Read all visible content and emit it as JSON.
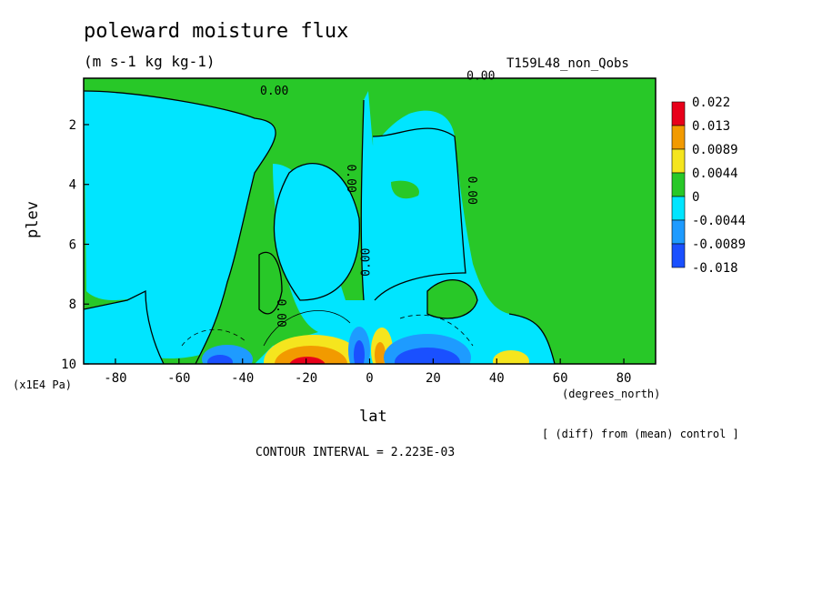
{
  "figure": {
    "title": "poleward moisture flux",
    "units": "(m s-1 kg kg-1)",
    "run_label": "T159L48_non_Qobs",
    "ylabel": "plev",
    "xlabel": "lat",
    "y_unit": "(x1E4 Pa)",
    "x_unit": "(degrees_north)",
    "diff_note": "[ (diff) from (mean) control ]",
    "contour_interval": "CONTOUR INTERVAL = 2.223E-03"
  },
  "chart_data": {
    "type": "heatmap",
    "title": "poleward moisture flux",
    "xlabel": "lat",
    "ylabel": "plev",
    "xlim": [
      -90,
      90
    ],
    "ylim": [
      10,
      0
    ],
    "x_ticks": [
      "-80",
      "-60",
      "-40",
      "-20",
      "0",
      "20",
      "40",
      "60",
      "80"
    ],
    "x_tick_values": [
      -80,
      -60,
      -40,
      -20,
      0,
      20,
      40,
      60,
      80
    ],
    "y_ticks": [
      "2",
      "4",
      "6",
      "8",
      "10"
    ],
    "y_tick_values": [
      2,
      4,
      6,
      8,
      10
    ],
    "contour_labels": [
      {
        "text": "0.00",
        "lat": -30,
        "plev": 1.0
      },
      {
        "text": "0.00",
        "lat": 35,
        "plev": 0.5
      },
      {
        "text": "0.00",
        "lat": -7,
        "plev": 3.8
      },
      {
        "text": "0.00",
        "lat": 31,
        "plev": 4.2
      },
      {
        "text": "0.00",
        "lat": 0,
        "plev": 6.6
      },
      {
        "text": "0.00",
        "lat": -29,
        "plev": 8.3
      }
    ],
    "legend": {
      "labels": [
        "0.022",
        "0.013",
        "0.0089",
        "0.0044",
        "0",
        "-0.0044",
        "-0.0089",
        "-0.018"
      ],
      "colors": [
        "#e8001a",
        "#f29a00",
        "#f5e51e",
        "#28c828",
        "#00e5ff",
        "#1e9bff",
        "#1a50ff"
      ]
    },
    "features": [
      {
        "lat": -19,
        "plev": 10.0,
        "value": 0.022
      },
      {
        "lat": -18,
        "plev": 9.6,
        "value": 0.013
      },
      {
        "lat": 3,
        "plev": 9.6,
        "value": 0.013
      },
      {
        "lat": 45,
        "plev": 9.9,
        "value": 0.0089
      },
      {
        "lat": -48,
        "plev": 9.8,
        "value": -0.0089
      },
      {
        "lat": 18,
        "plev": 9.8,
        "value": -0.0089
      },
      {
        "lat": -3,
        "plev": 9.6,
        "value": -0.018
      }
    ],
    "grid": false,
    "legend_position": "right"
  }
}
